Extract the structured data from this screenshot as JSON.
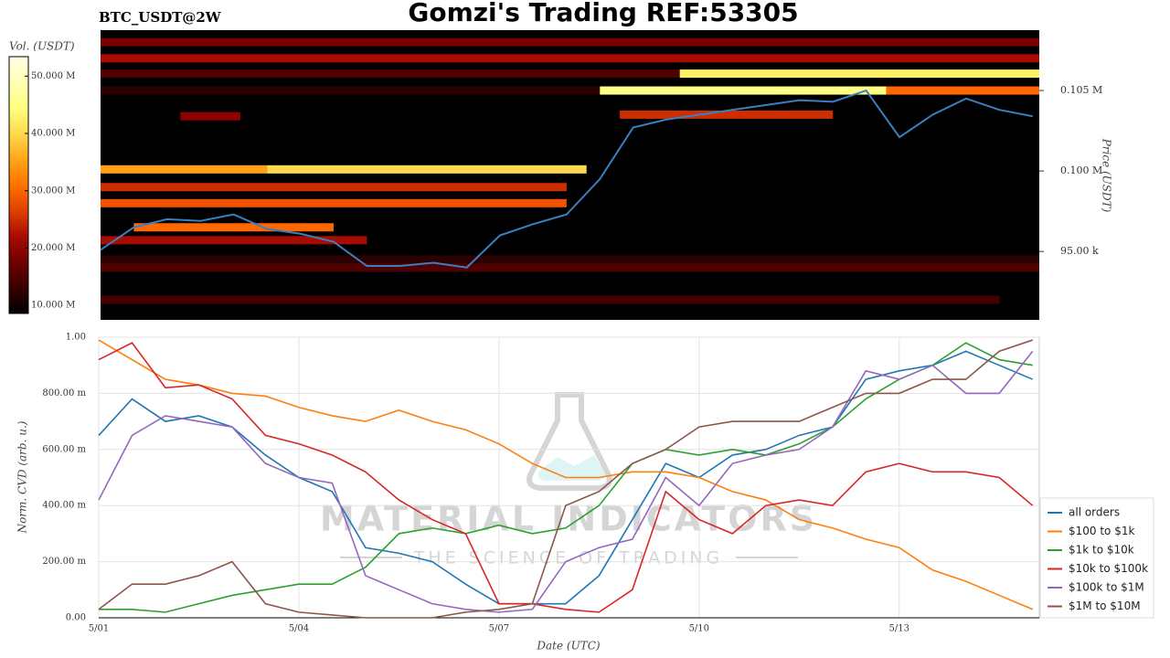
{
  "chart_data": [
    {
      "type": "heatmap",
      "title": "Gomzi's Trading REF:53305",
      "subtitle": "BTC_USDT@2W",
      "ylabel": "Price (USDT)",
      "xlim": [
        1,
        15.1
      ],
      "ylim": [
        90750,
        108750
      ],
      "yticks": [
        {
          "value": 95000,
          "label": "95.00 k"
        },
        {
          "value": 100000,
          "label": "0.100 M"
        },
        {
          "value": 105000,
          "label": "0.105 M"
        }
      ],
      "line_color": "#3a7fc0",
      "x": [
        1,
        1.5,
        2,
        2.5,
        3,
        3.5,
        4,
        4.5,
        5,
        5.5,
        6,
        6.5,
        7,
        7.5,
        8,
        8.5,
        9,
        9.5,
        10,
        10.5,
        11,
        11.5,
        12,
        12.5,
        13,
        13.5,
        14,
        14.5,
        15
      ],
      "price": [
        95100,
        96500,
        97000,
        96900,
        97300,
        96400,
        96100,
        95600,
        94100,
        94100,
        94300,
        94000,
        96000,
        96700,
        97300,
        99500,
        102700,
        103200,
        103500,
        103800,
        104100,
        104400,
        104300,
        105000,
        102100,
        103500,
        104500,
        103800,
        103400
      ],
      "bands": [
        {
          "price": 108000,
          "start": 1,
          "end": 15.1,
          "volume": 18000000
        },
        {
          "price": 107000,
          "start": 1,
          "end": 15.1,
          "volume": 22000000
        },
        {
          "price": 106050,
          "start": 1,
          "end": 9.7,
          "volume": 15000000
        },
        {
          "price": 106050,
          "start": 9.7,
          "end": 15.1,
          "volume": 42000000
        },
        {
          "price": 105000,
          "start": 1,
          "end": 8.5,
          "volume": 12000000
        },
        {
          "price": 105000,
          "start": 8.5,
          "end": 12.8,
          "volume": 45000000
        },
        {
          "price": 105000,
          "start": 12.8,
          "end": 15.1,
          "volume": 30000000
        },
        {
          "price": 103500,
          "start": 8.8,
          "end": 12,
          "volume": 25000000
        },
        {
          "price": 103400,
          "start": 2.2,
          "end": 3.1,
          "volume": 20000000
        },
        {
          "price": 100100,
          "start": 1,
          "end": 3.5,
          "volume": 35000000
        },
        {
          "price": 100100,
          "start": 3.5,
          "end": 8.3,
          "volume": 40000000
        },
        {
          "price": 99000,
          "start": 1,
          "end": 8,
          "volume": 25000000
        },
        {
          "price": 98000,
          "start": 1,
          "end": 8,
          "volume": 28000000
        },
        {
          "price": 96500,
          "start": 1.5,
          "end": 4.5,
          "volume": 30000000
        },
        {
          "price": 95700,
          "start": 1,
          "end": 5,
          "volume": 22000000
        },
        {
          "price": 94500,
          "start": 1,
          "end": 15.1,
          "volume": 12000000
        },
        {
          "price": 94000,
          "start": 1,
          "end": 15.1,
          "volume": 15000000
        },
        {
          "price": 92000,
          "start": 1,
          "end": 14.5,
          "volume": 14000000
        }
      ],
      "colorbar": {
        "label": "Vol. (USDT)",
        "lim": [
          8600000,
          53400000
        ],
        "ticks": [
          {
            "value": 10000000,
            "label": "10.000 M"
          },
          {
            "value": 20000000,
            "label": "20.000 M"
          },
          {
            "value": 30000000,
            "label": "30.000 M"
          },
          {
            "value": 40000000,
            "label": "40.000 M"
          },
          {
            "value": 50000000,
            "label": "50.000 M"
          }
        ]
      }
    },
    {
      "type": "line",
      "xlabel": "Date (UTC)",
      "ylabel": "Norm. CVD (arb. u.)",
      "grid": true,
      "legend": "lower right",
      "watermark": [
        "MATERIAL INDICATORS",
        "THE SCIENCE OF TRADING"
      ],
      "xlim": [
        1,
        15.1
      ],
      "xticks": [
        {
          "value": 1,
          "label": "5/01"
        },
        {
          "value": 4,
          "label": "5/04"
        },
        {
          "value": 7,
          "label": "5/07"
        },
        {
          "value": 10,
          "label": "5/10"
        },
        {
          "value": 13,
          "label": "5/13"
        }
      ],
      "ylim": [
        0,
        1
      ],
      "yticks": [
        {
          "value": 0,
          "label": "0.00"
        },
        {
          "value": 0.2,
          "label": "200.00 m"
        },
        {
          "value": 0.4,
          "label": "400.00 m"
        },
        {
          "value": 0.6,
          "label": "600.00 m"
        },
        {
          "value": 0.8,
          "label": "800.00 m"
        },
        {
          "value": 1,
          "label": "1.00"
        }
      ],
      "x": [
        1,
        1.5,
        2,
        2.5,
        3,
        3.5,
        4,
        4.5,
        5,
        5.5,
        6,
        6.5,
        7,
        7.5,
        8,
        8.5,
        9,
        9.5,
        10,
        10.5,
        11,
        11.5,
        12,
        12.5,
        13,
        13.5,
        14,
        14.5,
        15
      ],
      "series": [
        {
          "name": "all orders",
          "color": "#1f77b4",
          "values": [
            0.65,
            0.78,
            0.7,
            0.72,
            0.68,
            0.58,
            0.5,
            0.45,
            0.25,
            0.23,
            0.2,
            0.12,
            0.05,
            0.05,
            0.05,
            0.15,
            0.35,
            0.55,
            0.5,
            0.58,
            0.6,
            0.65,
            0.68,
            0.85,
            0.88,
            0.9,
            0.95,
            0.9,
            0.85
          ]
        },
        {
          "name": "$100 to $1k",
          "color": "#ff7f0e",
          "values": [
            0.99,
            0.92,
            0.85,
            0.83,
            0.8,
            0.79,
            0.75,
            0.72,
            0.7,
            0.74,
            0.7,
            0.67,
            0.62,
            0.55,
            0.5,
            0.5,
            0.52,
            0.52,
            0.5,
            0.45,
            0.42,
            0.35,
            0.32,
            0.28,
            0.25,
            0.17,
            0.13,
            0.08,
            0.03
          ]
        },
        {
          "name": "$1k to $10k",
          "color": "#2ca02c",
          "values": [
            0.03,
            0.03,
            0.02,
            0.05,
            0.08,
            0.1,
            0.12,
            0.12,
            0.18,
            0.3,
            0.32,
            0.3,
            0.33,
            0.3,
            0.32,
            0.4,
            0.55,
            0.6,
            0.58,
            0.6,
            0.58,
            0.62,
            0.68,
            0.78,
            0.85,
            0.9,
            0.98,
            0.92,
            0.9
          ]
        },
        {
          "name": "$10k to $100k",
          "color": "#d62728",
          "values": [
            0.92,
            0.98,
            0.82,
            0.83,
            0.78,
            0.65,
            0.62,
            0.58,
            0.52,
            0.42,
            0.35,
            0.3,
            0.05,
            0.05,
            0.03,
            0.02,
            0.1,
            0.45,
            0.35,
            0.3,
            0.4,
            0.42,
            0.4,
            0.52,
            0.55,
            0.52,
            0.52,
            0.5,
            0.4
          ]
        },
        {
          "name": "$100k to $1M",
          "color": "#9467bd",
          "values": [
            0.42,
            0.65,
            0.72,
            0.7,
            0.68,
            0.55,
            0.5,
            0.48,
            0.15,
            0.1,
            0.05,
            0.03,
            0.02,
            0.03,
            0.2,
            0.25,
            0.28,
            0.5,
            0.4,
            0.55,
            0.58,
            0.6,
            0.68,
            0.88,
            0.85,
            0.9,
            0.8,
            0.8,
            0.95
          ]
        },
        {
          "name": "$1M to $10M",
          "color": "#8c564b",
          "values": [
            0.03,
            0.12,
            0.12,
            0.15,
            0.2,
            0.05,
            0.02,
            0.01,
            0.0,
            0.0,
            0.0,
            0.02,
            0.03,
            0.05,
            0.4,
            0.45,
            0.55,
            0.6,
            0.68,
            0.7,
            0.7,
            0.7,
            0.75,
            0.8,
            0.8,
            0.85,
            0.85,
            0.95,
            0.99
          ]
        }
      ]
    }
  ]
}
